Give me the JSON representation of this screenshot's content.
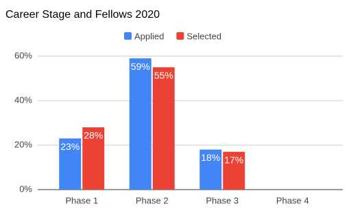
{
  "chart_data": {
    "type": "bar",
    "title": "Career Stage and Fellows 2020",
    "categories": [
      "Phase 1",
      "Phase 2",
      "Phase 3",
      "Phase 4"
    ],
    "series": [
      {
        "name": "Applied",
        "color": "#4285f4",
        "values": [
          23,
          59,
          18,
          null
        ],
        "value_labels": [
          "23%",
          "59%",
          "18%",
          null
        ]
      },
      {
        "name": "Selected",
        "color": "#ea4335",
        "values": [
          28,
          55,
          17,
          null
        ],
        "value_labels": [
          "28%",
          "55%",
          "17%",
          null
        ]
      }
    ],
    "ylim": [
      0,
      60
    ],
    "yticks": [
      {
        "value": 0,
        "label": "0%"
      },
      {
        "value": 20,
        "label": "20%"
      },
      {
        "value": 40,
        "label": "40%"
      },
      {
        "value": 60,
        "label": "60%"
      }
    ],
    "grid": true,
    "legend": "top"
  }
}
